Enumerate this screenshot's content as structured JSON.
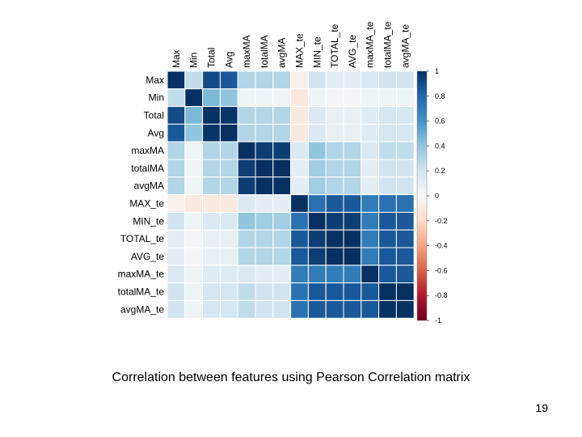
{
  "slide": {
    "caption": "Correlation between features using Pearson Correlation matrix",
    "page_number": "19"
  },
  "chart_data": {
    "type": "heatmap",
    "title": "",
    "row_labels": [
      "Max",
      "Min",
      "Total",
      "Avg",
      "maxMA",
      "totalMA",
      "avgMA",
      "MAX_te",
      "MIN_te",
      "TOTAL_te",
      "AVG_te",
      "maxMA_te",
      "totalMA_te",
      "avgMA_te"
    ],
    "column_labels": [
      "Max",
      "Min",
      "Total",
      "Avg",
      "maxMA",
      "totalMA",
      "avgMA",
      "MAX_te",
      "MIN_te",
      "TOTAL_te",
      "AVG_te",
      "maxMA_te",
      "totalMA_te",
      "avgMA_te"
    ],
    "values": [
      [
        1.0,
        0.25,
        0.9,
        0.85,
        0.3,
        0.3,
        0.3,
        -0.05,
        0.2,
        0.1,
        0.1,
        0.15,
        0.2,
        0.2
      ],
      [
        0.25,
        1.0,
        0.45,
        0.4,
        0.05,
        0.05,
        0.05,
        -0.1,
        0.05,
        0.02,
        0.02,
        0.05,
        0.05,
        0.05
      ],
      [
        0.9,
        0.45,
        1.0,
        0.98,
        0.3,
        0.3,
        0.3,
        -0.1,
        0.15,
        0.08,
        0.08,
        0.12,
        0.18,
        0.18
      ],
      [
        0.85,
        0.4,
        0.98,
        1.0,
        0.3,
        0.3,
        0.3,
        -0.1,
        0.15,
        0.08,
        0.08,
        0.12,
        0.18,
        0.18
      ],
      [
        0.3,
        0.05,
        0.3,
        0.3,
        1.0,
        0.95,
        0.95,
        0.15,
        0.4,
        0.3,
        0.3,
        0.15,
        0.25,
        0.25
      ],
      [
        0.3,
        0.05,
        0.3,
        0.3,
        0.95,
        1.0,
        1.0,
        0.1,
        0.35,
        0.3,
        0.3,
        0.1,
        0.2,
        0.2
      ],
      [
        0.3,
        0.05,
        0.3,
        0.3,
        0.95,
        1.0,
        1.0,
        0.1,
        0.35,
        0.3,
        0.3,
        0.1,
        0.2,
        0.2
      ],
      [
        -0.05,
        -0.1,
        -0.1,
        -0.1,
        0.15,
        0.1,
        0.1,
        1.0,
        0.75,
        0.85,
        0.85,
        0.7,
        0.75,
        0.75
      ],
      [
        0.2,
        0.05,
        0.15,
        0.15,
        0.4,
        0.35,
        0.35,
        0.75,
        1.0,
        0.95,
        0.95,
        0.7,
        0.85,
        0.85
      ],
      [
        0.1,
        0.02,
        0.08,
        0.08,
        0.3,
        0.3,
        0.3,
        0.85,
        0.95,
        1.0,
        1.0,
        0.7,
        0.85,
        0.85
      ],
      [
        0.1,
        0.02,
        0.08,
        0.08,
        0.3,
        0.3,
        0.3,
        0.85,
        0.95,
        1.0,
        1.0,
        0.7,
        0.85,
        0.85
      ],
      [
        0.15,
        0.05,
        0.12,
        0.12,
        0.15,
        0.1,
        0.1,
        0.7,
        0.7,
        0.7,
        0.7,
        1.0,
        0.85,
        0.85
      ],
      [
        0.2,
        0.05,
        0.18,
        0.18,
        0.25,
        0.2,
        0.2,
        0.75,
        0.85,
        0.85,
        0.85,
        0.85,
        1.0,
        1.0
      ],
      [
        0.2,
        0.05,
        0.18,
        0.18,
        0.25,
        0.2,
        0.2,
        0.75,
        0.85,
        0.85,
        0.85,
        0.85,
        1.0,
        1.0
      ]
    ],
    "colorbar": {
      "range": [
        -1,
        1
      ],
      "tick_labels": [
        "1",
        "0.8",
        "0.6",
        "0.4",
        "0.2",
        "0",
        "-0.2",
        "-0.4",
        "-0.6",
        "-0.8",
        "-1"
      ]
    },
    "color_scale": {
      "negative_end": "#67001f",
      "mid": "#f7f7f7",
      "positive_end": "#053061"
    },
    "grid_color": "#ffffff"
  }
}
